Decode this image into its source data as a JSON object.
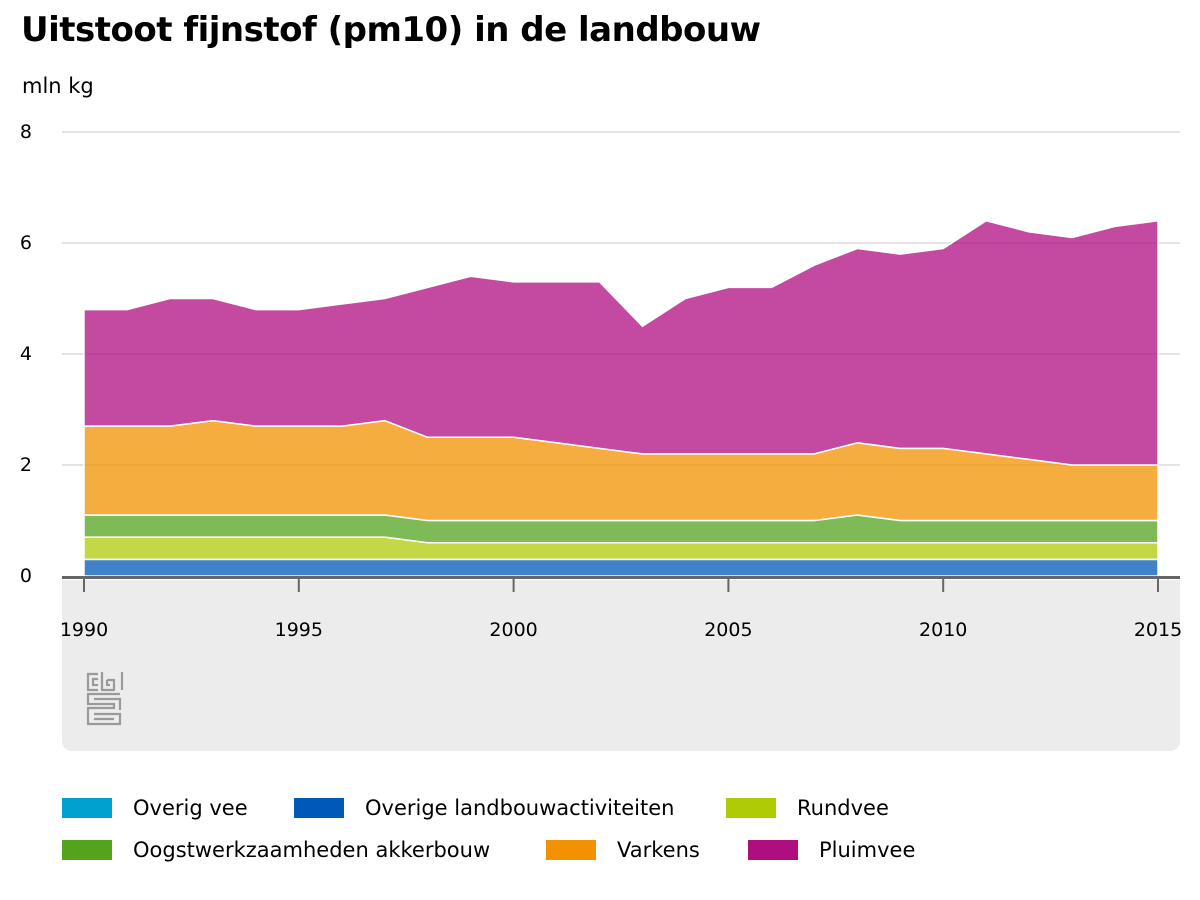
{
  "chart_data": {
    "type": "area",
    "stacked": true,
    "title": "Uitstoot fijnstof (pm10) in de landbouw",
    "ylabel": "mln kg",
    "ylim": [
      0,
      8
    ],
    "yticks": [
      0,
      2,
      4,
      6,
      8
    ],
    "xticks": [
      1990,
      1995,
      2000,
      2005,
      2010,
      2015
    ],
    "grid": true,
    "legend_position": "bottom",
    "x": [
      1990,
      1991,
      1992,
      1993,
      1994,
      1995,
      1996,
      1997,
      1998,
      1999,
      2000,
      2001,
      2002,
      2003,
      2004,
      2005,
      2006,
      2007,
      2008,
      2009,
      2010,
      2011,
      2012,
      2013,
      2014,
      2015
    ],
    "series": [
      {
        "name": "Overig vee",
        "color": "#00a1cd",
        "values": [
          0,
          0,
          0,
          0,
          0,
          0,
          0,
          0,
          0,
          0,
          0,
          0,
          0,
          0,
          0,
          0,
          0,
          0,
          0,
          0,
          0,
          0,
          0,
          0,
          0,
          0
        ]
      },
      {
        "name": "Overige landbouwactiviteiten",
        "color": "#0058b8",
        "values": [
          0.3,
          0.3,
          0.3,
          0.3,
          0.3,
          0.3,
          0.3,
          0.3,
          0.3,
          0.3,
          0.3,
          0.3,
          0.3,
          0.3,
          0.3,
          0.3,
          0.3,
          0.3,
          0.3,
          0.3,
          0.3,
          0.3,
          0.3,
          0.3,
          0.3,
          0.3
        ]
      },
      {
        "name": "Rundvee",
        "color": "#afcb05",
        "values": [
          0.4,
          0.4,
          0.4,
          0.4,
          0.4,
          0.4,
          0.4,
          0.4,
          0.3,
          0.3,
          0.3,
          0.3,
          0.3,
          0.3,
          0.3,
          0.3,
          0.3,
          0.3,
          0.3,
          0.3,
          0.3,
          0.3,
          0.3,
          0.3,
          0.3,
          0.3
        ]
      },
      {
        "name": "Oogstwerkzaamheden akkerbouw",
        "color": "#53a31d",
        "values": [
          0.4,
          0.4,
          0.4,
          0.4,
          0.4,
          0.4,
          0.4,
          0.4,
          0.4,
          0.4,
          0.4,
          0.4,
          0.4,
          0.4,
          0.4,
          0.4,
          0.4,
          0.4,
          0.5,
          0.4,
          0.4,
          0.4,
          0.4,
          0.4,
          0.4,
          0.4
        ]
      },
      {
        "name": "Varkens",
        "color": "#f39200",
        "values": [
          1.6,
          1.6,
          1.6,
          1.7,
          1.6,
          1.6,
          1.6,
          1.7,
          1.5,
          1.5,
          1.5,
          1.4,
          1.3,
          1.2,
          1.2,
          1.2,
          1.2,
          1.2,
          1.3,
          1.3,
          1.3,
          1.2,
          1.1,
          1.0,
          1.0,
          1.0
        ]
      },
      {
        "name": "Pluimvee",
        "color": "#af0e80",
        "values": [
          2.1,
          2.1,
          2.3,
          2.2,
          2.1,
          2.1,
          2.2,
          2.2,
          2.7,
          2.9,
          2.8,
          2.9,
          3.0,
          2.3,
          2.8,
          3.0,
          3.0,
          3.4,
          3.5,
          3.5,
          3.6,
          4.2,
          4.1,
          4.1,
          4.3,
          4.4
        ]
      }
    ]
  },
  "logo": {
    "name": "cbs"
  },
  "legend_layout_rows": [
    [
      "Overig vee",
      "Overige landbouwactiviteiten",
      "Rundvee"
    ],
    [
      "Oogstwerkzaamheden akkerbouw",
      "Varkens",
      "Pluimvee"
    ]
  ]
}
